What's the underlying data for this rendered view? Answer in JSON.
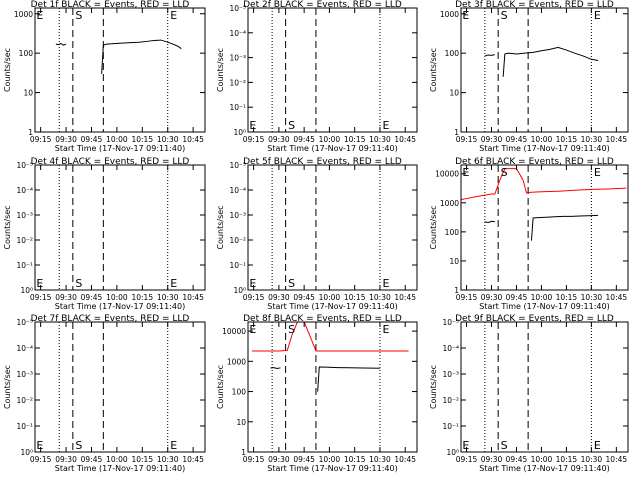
{
  "chart_data": [
    {
      "type": "line",
      "title": "Det 1f BLACK = Events, RED = LLD",
      "ylabel": "Counts/sec",
      "xlabel": "Start Time (17-Nov-17 09:11:40)",
      "log_y": true,
      "xlim": [
        551.67,
        652
      ],
      "ylim": [
        1,
        1400
      ],
      "yticks": [
        1,
        10,
        100,
        1000
      ],
      "xticks": [
        {
          "value": 555,
          "label": "09:15"
        },
        {
          "value": 570,
          "label": "09:30"
        },
        {
          "value": 585,
          "label": "09:45"
        },
        {
          "value": 600,
          "label": "10:00"
        },
        {
          "value": 615,
          "label": "10:15"
        },
        {
          "value": 630,
          "label": "10:30"
        },
        {
          "value": 645,
          "label": "10:45"
        }
      ],
      "lines": [
        {
          "x": 566,
          "style": "dotted"
        },
        {
          "x": 574,
          "style": "dashed"
        },
        {
          "x": 592,
          "style": "dashed"
        },
        {
          "x": 630,
          "style": "dotted"
        }
      ],
      "line_labels": [
        {
          "x": 552.5,
          "text": "E"
        },
        {
          "x": 575.5,
          "text": "S"
        },
        {
          "x": 631.5,
          "text": "E"
        }
      ],
      "label_position": "top",
      "series": [
        {
          "name": "Events",
          "color": "#000000",
          "x": [
            564,
            565.5,
            567,
            568.5,
            570,
            571,
            591,
            592,
            594,
            598,
            603,
            608,
            613,
            618,
            622,
            626,
            630,
            633,
            636,
            638
          ],
          "values": [
            170,
            165,
            175,
            160,
            170,
            null,
            30,
            160,
            170,
            175,
            180,
            185,
            190,
            200,
            210,
            215,
            190,
            170,
            150,
            130
          ]
        }
      ]
    },
    {
      "type": "line",
      "title": "Det 2f BLACK = Events, RED = LLD",
      "ylabel": "Counts/sec",
      "xlabel": "Start Time (17-Nov-17 09:11:40)",
      "log_y": true,
      "xlim": [
        551.67,
        652
      ],
      "ylim": [
        1,
        1e-05
      ],
      "yticks": [
        {
          "value": 1,
          "label": "10⁰"
        },
        {
          "value": 0.1,
          "label": "10⁻¹"
        },
        {
          "value": 0.01,
          "label": "10⁻²"
        },
        {
          "value": 0.001,
          "label": "10⁻³"
        },
        {
          "value": 0.0001,
          "label": "10⁻⁴"
        },
        {
          "value": 1e-05,
          "label": "10⁻⁵"
        }
      ],
      "xticks": [
        {
          "value": 555,
          "label": "09:15"
        },
        {
          "value": 570,
          "label": "09:30"
        },
        {
          "value": 585,
          "label": "09:45"
        },
        {
          "value": 600,
          "label": "10:00"
        },
        {
          "value": 615,
          "label": "10:15"
        },
        {
          "value": 630,
          "label": "10:30"
        },
        {
          "value": 645,
          "label": "10:45"
        }
      ],
      "lines": [
        {
          "x": 566,
          "style": "dotted"
        },
        {
          "x": 574,
          "style": "dashed"
        },
        {
          "x": 592,
          "style": "dashed"
        },
        {
          "x": 630,
          "style": "dotted"
        }
      ],
      "line_labels": [
        {
          "x": 552.5,
          "text": "E"
        },
        {
          "x": 575.5,
          "text": "S"
        },
        {
          "x": 631.5,
          "text": "E"
        }
      ],
      "label_position": "bottom",
      "series": []
    },
    {
      "type": "line",
      "title": "Det 3f BLACK = Events, RED = LLD",
      "ylabel": "Counts/sec",
      "xlabel": "Start Time (17-Nov-17 09:11:40)",
      "log_y": true,
      "xlim": [
        551.67,
        652
      ],
      "ylim": [
        1,
        1400
      ],
      "yticks": [
        1,
        10,
        100,
        1000
      ],
      "xticks": [
        {
          "value": 555,
          "label": "09:15"
        },
        {
          "value": 570,
          "label": "09:30"
        },
        {
          "value": 585,
          "label": "09:45"
        },
        {
          "value": 600,
          "label": "10:00"
        },
        {
          "value": 615,
          "label": "10:15"
        },
        {
          "value": 630,
          "label": "10:30"
        },
        {
          "value": 645,
          "label": "10:45"
        }
      ],
      "lines": [
        {
          "x": 566,
          "style": "dotted"
        },
        {
          "x": 574,
          "style": "dashed"
        },
        {
          "x": 592,
          "style": "dashed"
        },
        {
          "x": 630,
          "style": "dotted"
        }
      ],
      "line_labels": [
        {
          "x": 552.5,
          "text": "E"
        },
        {
          "x": 575.5,
          "text": "S"
        },
        {
          "x": 631.5,
          "text": "E"
        }
      ],
      "label_position": "top",
      "series": [
        {
          "name": "Events",
          "color": "#000000",
          "x": [
            566,
            568,
            570,
            572,
            573,
            577,
            578,
            580,
            585,
            590,
            595,
            600,
            605,
            610,
            615,
            620,
            625,
            630,
            634
          ],
          "values": [
            85,
            90,
            88,
            92,
            null,
            25,
            95,
            100,
            95,
            100,
            105,
            115,
            125,
            140,
            120,
            100,
            85,
            70,
            65
          ]
        }
      ]
    },
    {
      "type": "line",
      "title": "Det 4f BLACK = Events, RED = LLD",
      "ylabel": "Counts/sec",
      "xlabel": "Start Time (17-Nov-17 09:11:40)",
      "log_y": true,
      "xlim": [
        551.67,
        652
      ],
      "ylim": [
        1,
        1e-05
      ],
      "yticks": [
        {
          "value": 1,
          "label": "10⁰"
        },
        {
          "value": 0.1,
          "label": "10⁻¹"
        },
        {
          "value": 0.01,
          "label": "10⁻²"
        },
        {
          "value": 0.001,
          "label": "10⁻³"
        },
        {
          "value": 0.0001,
          "label": "10⁻⁴"
        },
        {
          "value": 1e-05,
          "label": "10⁻⁵"
        }
      ],
      "xticks": [
        {
          "value": 555,
          "label": "09:15"
        },
        {
          "value": 570,
          "label": "09:30"
        },
        {
          "value": 585,
          "label": "09:45"
        },
        {
          "value": 600,
          "label": "10:00"
        },
        {
          "value": 615,
          "label": "10:15"
        },
        {
          "value": 630,
          "label": "10:30"
        },
        {
          "value": 645,
          "label": "10:45"
        }
      ],
      "lines": [
        {
          "x": 566,
          "style": "dotted"
        },
        {
          "x": 574,
          "style": "dashed"
        },
        {
          "x": 592,
          "style": "dashed"
        },
        {
          "x": 630,
          "style": "dotted"
        }
      ],
      "line_labels": [
        {
          "x": 552.5,
          "text": "E"
        },
        {
          "x": 575.5,
          "text": "S"
        },
        {
          "x": 631.5,
          "text": "E"
        }
      ],
      "label_position": "bottom",
      "series": []
    },
    {
      "type": "line",
      "title": "Det 5f BLACK = Events, RED = LLD",
      "ylabel": "Counts/sec",
      "xlabel": "Start Time (17-Nov-17 09:11:40)",
      "log_y": true,
      "xlim": [
        551.67,
        652
      ],
      "ylim": [
        1,
        1e-05
      ],
      "yticks": [
        {
          "value": 1,
          "label": "10⁰"
        },
        {
          "value": 0.1,
          "label": "10⁻¹"
        },
        {
          "value": 0.01,
          "label": "10⁻²"
        },
        {
          "value": 0.001,
          "label": "10⁻³"
        },
        {
          "value": 0.0001,
          "label": "10⁻⁴"
        },
        {
          "value": 1e-05,
          "label": "10⁻⁵"
        }
      ],
      "xticks": [
        {
          "value": 555,
          "label": "09:15"
        },
        {
          "value": 570,
          "label": "09:30"
        },
        {
          "value": 585,
          "label": "09:45"
        },
        {
          "value": 600,
          "label": "10:00"
        },
        {
          "value": 615,
          "label": "10:15"
        },
        {
          "value": 630,
          "label": "10:30"
        },
        {
          "value": 645,
          "label": "10:45"
        }
      ],
      "lines": [
        {
          "x": 566,
          "style": "dotted"
        },
        {
          "x": 574,
          "style": "dashed"
        },
        {
          "x": 592,
          "style": "dashed"
        },
        {
          "x": 630,
          "style": "dotted"
        }
      ],
      "line_labels": [
        {
          "x": 552.5,
          "text": "E"
        },
        {
          "x": 575.5,
          "text": "S"
        },
        {
          "x": 631.5,
          "text": "E"
        }
      ],
      "label_position": "bottom",
      "series": []
    },
    {
      "type": "line",
      "title": "Det 6f BLACK = Events, RED = LLD",
      "ylabel": "Counts/sec",
      "xlabel": "Start Time (17-Nov-17 09:11:40)",
      "log_y": true,
      "xlim": [
        551.67,
        652
      ],
      "ylim": [
        1,
        20000
      ],
      "yticks": [
        1,
        10,
        100,
        1000,
        10000
      ],
      "xticks": [
        {
          "value": 555,
          "label": "09:15"
        },
        {
          "value": 570,
          "label": "09:30"
        },
        {
          "value": 585,
          "label": "09:45"
        },
        {
          "value": 600,
          "label": "10:00"
        },
        {
          "value": 615,
          "label": "10:15"
        },
        {
          "value": 630,
          "label": "10:30"
        },
        {
          "value": 645,
          "label": "10:45"
        }
      ],
      "lines": [
        {
          "x": 566,
          "style": "dotted"
        },
        {
          "x": 574,
          "style": "dashed"
        },
        {
          "x": 592,
          "style": "dashed"
        },
        {
          "x": 630,
          "style": "dotted"
        }
      ],
      "line_labels": [
        {
          "x": 552.5,
          "text": "E"
        },
        {
          "x": 575.5,
          "text": "S"
        },
        {
          "x": 631.5,
          "text": "E"
        }
      ],
      "label_position": "top",
      "series": [
        {
          "name": "Events",
          "color": "#000000",
          "x": [
            566,
            568,
            570,
            572,
            573,
            594,
            595,
            598,
            603,
            608,
            613,
            618,
            623,
            628,
            634
          ],
          "values": [
            220,
            210,
            230,
            225,
            null,
            50,
            300,
            310,
            320,
            330,
            340,
            340,
            350,
            360,
            370
          ]
        },
        {
          "name": "LLD",
          "color": "#ff0000",
          "x": [
            552,
            555,
            560,
            565,
            570,
            572,
            575,
            578,
            585,
            589,
            591,
            594,
            600,
            610,
            620,
            630,
            640,
            651
          ],
          "values": [
            1300,
            1400,
            1600,
            1800,
            2000,
            2000,
            6000,
            15000,
            15000,
            6000,
            2200,
            2300,
            2400,
            2500,
            2700,
            2900,
            3000,
            3200
          ]
        }
      ]
    },
    {
      "type": "line",
      "title": "Det 7f BLACK = Events, RED = LLD",
      "ylabel": "Counts/sec",
      "xlabel": "Start Time (17-Nov-17 09:11:40)",
      "log_y": true,
      "xlim": [
        551.67,
        652
      ],
      "ylim": [
        1,
        1e-05
      ],
      "yticks": [
        {
          "value": 1,
          "label": "10⁰"
        },
        {
          "value": 0.1,
          "label": "10⁻¹"
        },
        {
          "value": 0.01,
          "label": "10⁻²"
        },
        {
          "value": 0.001,
          "label": "10⁻³"
        },
        {
          "value": 0.0001,
          "label": "10⁻⁴"
        },
        {
          "value": 1e-05,
          "label": "10⁻⁵"
        }
      ],
      "xticks": [
        {
          "value": 555,
          "label": "09:15"
        },
        {
          "value": 570,
          "label": "09:30"
        },
        {
          "value": 585,
          "label": "09:45"
        },
        {
          "value": 600,
          "label": "10:00"
        },
        {
          "value": 615,
          "label": "10:15"
        },
        {
          "value": 630,
          "label": "10:30"
        },
        {
          "value": 645,
          "label": "10:45"
        }
      ],
      "lines": [
        {
          "x": 566,
          "style": "dotted"
        },
        {
          "x": 574,
          "style": "dashed"
        },
        {
          "x": 592,
          "style": "dashed"
        },
        {
          "x": 630,
          "style": "dotted"
        }
      ],
      "line_labels": [
        {
          "x": 552.5,
          "text": "E"
        },
        {
          "x": 575.5,
          "text": "S"
        },
        {
          "x": 631.5,
          "text": "E"
        }
      ],
      "label_position": "bottom",
      "series": []
    },
    {
      "type": "line",
      "title": "Det 8f BLACK = Events, RED = LLD",
      "ylabel": "Counts/sec",
      "xlabel": "Start Time (17-Nov-17 09:11:40)",
      "log_y": true,
      "xlim": [
        551.67,
        652
      ],
      "ylim": [
        1,
        20000
      ],
      "yticks": [
        1,
        10,
        100,
        1000,
        10000
      ],
      "xticks": [
        {
          "value": 555,
          "label": "09:15"
        },
        {
          "value": 570,
          "label": "09:30"
        },
        {
          "value": 585,
          "label": "09:45"
        },
        {
          "value": 600,
          "label": "10:00"
        },
        {
          "value": 615,
          "label": "10:15"
        },
        {
          "value": 630,
          "label": "10:30"
        },
        {
          "value": 645,
          "label": "10:45"
        }
      ],
      "lines": [
        {
          "x": 566,
          "style": "dotted"
        },
        {
          "x": 574,
          "style": "dashed"
        },
        {
          "x": 592,
          "style": "dashed"
        },
        {
          "x": 630,
          "style": "dotted"
        }
      ],
      "line_labels": [
        {
          "x": 552.5,
          "text": "E"
        },
        {
          "x": 575.5,
          "text": "S"
        },
        {
          "x": 631.5,
          "text": "E"
        }
      ],
      "label_position": "top",
      "series": [
        {
          "name": "Events",
          "color": "#000000",
          "x": [
            565,
            567,
            569,
            571,
            572,
            593,
            594,
            598,
            605,
            612,
            620,
            630
          ],
          "values": [
            600,
            620,
            580,
            610,
            null,
            100,
            650,
            640,
            620,
            610,
            600,
            590
          ]
        },
        {
          "name": "LLD",
          "color": "#ff0000",
          "x": [
            554,
            560,
            565,
            570,
            575,
            578,
            581,
            585,
            588,
            592,
            600,
            610,
            620,
            630,
            640,
            647
          ],
          "values": [
            2200,
            2200,
            2200,
            2200,
            2300,
            8000,
            20000,
            20000,
            8000,
            2200,
            2200,
            2200,
            2200,
            2200,
            2200,
            2200
          ]
        }
      ]
    },
    {
      "type": "line",
      "title": "Det 9f BLACK = Events, RED = LLD",
      "ylabel": "Counts/sec",
      "xlabel": "Start Time (17-Nov-17 09:11:40)",
      "log_y": true,
      "xlim": [
        551.67,
        652
      ],
      "ylim": [
        1,
        1e-05
      ],
      "yticks": [
        {
          "value": 1,
          "label": "10⁰"
        },
        {
          "value": 0.1,
          "label": "10⁻¹"
        },
        {
          "value": 0.01,
          "label": "10⁻²"
        },
        {
          "value": 0.001,
          "label": "10⁻³"
        },
        {
          "value": 0.0001,
          "label": "10⁻⁴"
        },
        {
          "value": 1e-05,
          "label": "10⁻⁵"
        }
      ],
      "xticks": [
        {
          "value": 555,
          "label": "09:15"
        },
        {
          "value": 570,
          "label": "09:30"
        },
        {
          "value": 585,
          "label": "09:45"
        },
        {
          "value": 600,
          "label": "10:00"
        },
        {
          "value": 615,
          "label": "10:15"
        },
        {
          "value": 630,
          "label": "10:30"
        },
        {
          "value": 645,
          "label": "10:45"
        }
      ],
      "lines": [
        {
          "x": 566,
          "style": "dotted"
        },
        {
          "x": 574,
          "style": "dashed"
        },
        {
          "x": 592,
          "style": "dashed"
        },
        {
          "x": 630,
          "style": "dotted"
        }
      ],
      "line_labels": [
        {
          "x": 552.5,
          "text": "E"
        },
        {
          "x": 575.5,
          "text": "S"
        },
        {
          "x": 631.5,
          "text": "E"
        }
      ],
      "label_position": "bottom",
      "series": []
    }
  ]
}
